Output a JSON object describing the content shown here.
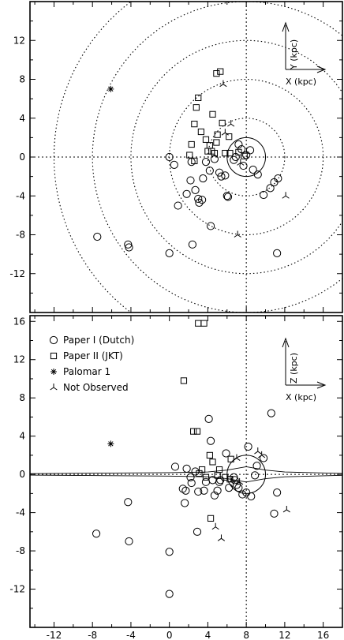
{
  "chart_data": [
    {
      "type": "scatter",
      "panel": "top",
      "title": "",
      "xlabel": "",
      "ylabel": "",
      "xlim": [
        -14.5,
        18
      ],
      "ylim": [
        -16,
        16
      ],
      "yticks": [
        "12",
        "8",
        "4",
        "0",
        "-4",
        "-8",
        "-12"
      ],
      "ytick_values": [
        12,
        8,
        4,
        0,
        -4,
        -8,
        -12
      ],
      "grid": "dotted lines at X=8 and Y=0",
      "rings": {
        "center": [
          8,
          0
        ],
        "radii_kpc": [
          4,
          8,
          12,
          16,
          20
        ]
      },
      "solar_circle": {
        "center": [
          8,
          0
        ],
        "radius_kpc": 2
      },
      "inset_axes": {
        "x_label": "X (kpc)",
        "y_label": "Y (kpc)"
      },
      "series": [
        {
          "name": "Paper I (Dutch)",
          "marker": "circle",
          "points": [
            [
              -7.5,
              -8.2
            ],
            [
              -4.3,
              -9
            ],
            [
              -4.2,
              -9.3
            ],
            [
              0,
              -9.9
            ],
            [
              0,
              0
            ],
            [
              0.5,
              -0.8
            ],
            [
              0.9,
              -5
            ],
            [
              1.8,
              -3.8
            ],
            [
              2.2,
              -2.4
            ],
            [
              2.3,
              -0.5
            ],
            [
              2.4,
              -9
            ],
            [
              2.7,
              -3.4
            ],
            [
              3,
              -4.3
            ],
            [
              3.1,
              -4.7
            ],
            [
              3.4,
              -4.4
            ],
            [
              3.5,
              -2.2
            ],
            [
              3.8,
              -0.5
            ],
            [
              4.2,
              -1.4
            ],
            [
              4.3,
              -7.1
            ],
            [
              4.7,
              -0.2
            ],
            [
              5.2,
              -1.6
            ],
            [
              5.4,
              -2
            ],
            [
              5.8,
              -1.9
            ],
            [
              6,
              -4
            ],
            [
              6.1,
              -4.1
            ],
            [
              6.7,
              -0.3
            ],
            [
              6.9,
              0
            ],
            [
              7.2,
              1.3
            ],
            [
              7.5,
              0.8
            ],
            [
              7.7,
              -0.9
            ],
            [
              8,
              0.2
            ],
            [
              8.4,
              0.7
            ],
            [
              8.7,
              -1.3
            ],
            [
              9.2,
              -1.8
            ],
            [
              9.8,
              -3.9
            ],
            [
              10.5,
              -3.2
            ],
            [
              10.9,
              -2.6
            ],
            [
              11.3,
              -2.2
            ],
            [
              11.2,
              -9.9
            ]
          ]
        },
        {
          "name": "Paper II (JKT)",
          "marker": "square",
          "points": [
            [
              2.1,
              0.2
            ],
            [
              2.6,
              -0.4
            ],
            [
              2.3,
              1.3
            ],
            [
              2.6,
              3.4
            ],
            [
              2.8,
              5.1
            ],
            [
              3,
              6.1
            ],
            [
              3.3,
              2.6
            ],
            [
              3.8,
              1.8
            ],
            [
              4,
              0.6
            ],
            [
              4.2,
              1.2
            ],
            [
              4.4,
              0.6
            ],
            [
              4.7,
              0.4
            ],
            [
              4.9,
              1.5
            ],
            [
              5,
              2.3
            ],
            [
              4.5,
              4.4
            ],
            [
              4.9,
              8.6
            ],
            [
              5.3,
              8.8
            ],
            [
              5.5,
              3.5
            ],
            [
              5.8,
              0.4
            ],
            [
              6.2,
              2.1
            ],
            [
              6.3,
              0.4
            ],
            [
              7.2,
              0.5
            ],
            [
              7.8,
              0.1
            ]
          ]
        },
        {
          "name": "Palomar 1",
          "marker": "asterisk",
          "points": [
            [
              -6.1,
              7
            ]
          ]
        },
        {
          "name": "Not Observed",
          "marker": "tri",
          "points": [
            [
              4.7,
              0.2
            ],
            [
              5.8,
              2.5
            ],
            [
              5.6,
              7.5
            ],
            [
              6.4,
              3.4
            ],
            [
              7.4,
              -0.6
            ],
            [
              7.1,
              -8
            ],
            [
              12.1,
              -4
            ]
          ]
        }
      ]
    },
    {
      "type": "scatter",
      "panel": "bottom",
      "title": "",
      "xlabel": "",
      "ylabel": "",
      "xlim": [
        -14.5,
        18
      ],
      "ylim": [
        -16,
        16.6
      ],
      "xticks": [
        "-12",
        "-8",
        "-4",
        "0",
        "4",
        "8",
        "12",
        "16"
      ],
      "xtick_values": [
        -12,
        -8,
        -4,
        0,
        4,
        8,
        12,
        16
      ],
      "yticks": [
        "16",
        "12",
        "8",
        "4",
        "0",
        "-4",
        "-8",
        "-12"
      ],
      "ytick_values": [
        16,
        12,
        8,
        4,
        0,
        -4,
        -8,
        -12
      ],
      "grid": "dotted lines at X=8 and Z=0",
      "bulge_circle": {
        "center": [
          8,
          0
        ],
        "radius_kpc": 2
      },
      "disk_outline": [
        [
          -14.5,
          0.08
        ],
        [
          0,
          0.18
        ],
        [
          4,
          0.25
        ],
        [
          6,
          0.45
        ],
        [
          8,
          0.8
        ],
        [
          10,
          0.45
        ],
        [
          12,
          0.25
        ],
        [
          18,
          0.1
        ]
      ],
      "inset_axes": {
        "x_label": "X (kpc)",
        "y_label": "Z (kpc)"
      },
      "legend": {
        "placement": "top-left"
      },
      "series": [
        {
          "name": "Paper I (Dutch)",
          "marker": "circle",
          "points": [
            [
              -7.6,
              -6.2
            ],
            [
              -4.3,
              -2.9
            ],
            [
              -4.2,
              -7
            ],
            [
              0,
              -8.1
            ],
            [
              0,
              -12.5
            ],
            [
              0.6,
              0.8
            ],
            [
              1.4,
              -1.5
            ],
            [
              1.6,
              -3
            ],
            [
              1.8,
              0.6
            ],
            [
              1.7,
              -1.7
            ],
            [
              2.2,
              -0.3
            ],
            [
              2.3,
              -0.9
            ],
            [
              2.7,
              0.3
            ],
            [
              2.9,
              -6
            ],
            [
              3,
              -1.8
            ],
            [
              3.6,
              -1.7
            ],
            [
              3.8,
              -0.8
            ],
            [
              4.1,
              5.8
            ],
            [
              4.3,
              3.5
            ],
            [
              4.7,
              -2.2
            ],
            [
              4.5,
              -0.6
            ],
            [
              5,
              -1.7
            ],
            [
              5.2,
              -0.8
            ],
            [
              5.3,
              -0.6
            ],
            [
              5.9,
              2.2
            ],
            [
              6.2,
              -1.4
            ],
            [
              6.7,
              -0.3
            ],
            [
              6.8,
              -0.6
            ],
            [
              7,
              -1.1
            ],
            [
              7.2,
              -1.4
            ],
            [
              7.6,
              -2.1
            ],
            [
              8,
              -1.9
            ],
            [
              8.2,
              2.9
            ],
            [
              8.5,
              -2.3
            ],
            [
              8.9,
              -0.1
            ],
            [
              9.1,
              0.9
            ],
            [
              9.8,
              1.7
            ],
            [
              10.6,
              6.4
            ],
            [
              10.9,
              -4.1
            ],
            [
              11.2,
              -1.9
            ]
          ]
        },
        {
          "name": "Paper II (JKT)",
          "marker": "square",
          "points": [
            [
              1.5,
              9.8
            ],
            [
              2.5,
              4.5
            ],
            [
              2.9,
              4.5
            ],
            [
              3,
              15.8
            ],
            [
              3.6,
              15.8
            ],
            [
              3.1,
              0.1
            ],
            [
              3.4,
              0.5
            ],
            [
              3.8,
              -0.3
            ],
            [
              4.3,
              -4.6
            ],
            [
              4.2,
              2
            ],
            [
              4.5,
              1.3
            ],
            [
              5,
              -0.1
            ],
            [
              5.2,
              0.5
            ],
            [
              5.8,
              -0.3
            ],
            [
              6.3,
              -0.5
            ],
            [
              6.4,
              1.6
            ]
          ]
        },
        {
          "name": "Palomar 1",
          "marker": "asterisk",
          "points": [
            [
              -6.1,
              3.2
            ]
          ]
        },
        {
          "name": "Not Observed",
          "marker": "tri",
          "points": [
            [
              4.8,
              -5.5
            ],
            [
              5.4,
              -6.7
            ],
            [
              6.5,
              -0.6
            ],
            [
              7,
              1.7
            ],
            [
              7.3,
              -0.8
            ],
            [
              9.2,
              2.4
            ],
            [
              9.6,
              2
            ],
            [
              12.2,
              -3.7
            ]
          ]
        }
      ]
    }
  ]
}
